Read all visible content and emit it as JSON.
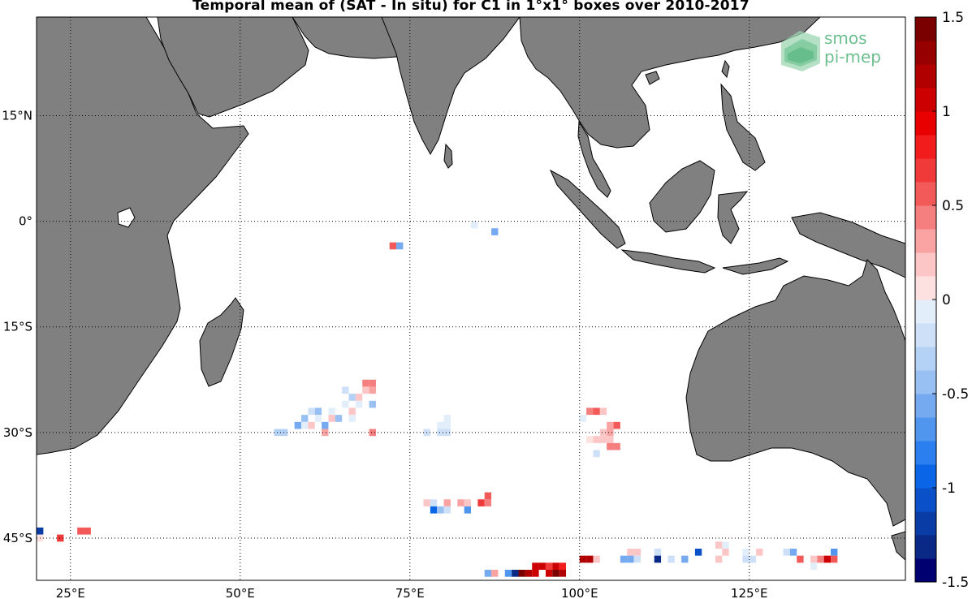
{
  "title": "Temporal mean of (SAT - In situ) for C1 in 1°x1° boxes over 2010-2017",
  "logo": {
    "line1": "smos",
    "line2": "pi-mep",
    "color": "#6dbf8f"
  },
  "map": {
    "lon_range": [
      20,
      148
    ],
    "lat_range": [
      -51,
      29
    ],
    "lon_ticks": [
      {
        "value": 25,
        "label": "25°E"
      },
      {
        "value": 50,
        "label": "50°E"
      },
      {
        "value": 75,
        "label": "75°E"
      },
      {
        "value": 100,
        "label": "100°E"
      },
      {
        "value": 125,
        "label": "125°E"
      }
    ],
    "lat_ticks": [
      {
        "value": 15,
        "label": "15°N"
      },
      {
        "value": 0,
        "label": "0°"
      },
      {
        "value": -15,
        "label": "15°S"
      },
      {
        "value": -30,
        "label": "30°S"
      },
      {
        "value": -45,
        "label": "45°S"
      }
    ],
    "land_color": "#808080",
    "ocean_color": "#ffffff",
    "grid": "dotted"
  },
  "colorbar": {
    "range": [
      -1.5,
      1.5
    ],
    "ticks": [
      {
        "value": 1.5,
        "label": "1.5"
      },
      {
        "value": 1,
        "label": "1"
      },
      {
        "value": 0.5,
        "label": "0.5"
      },
      {
        "value": 0,
        "label": "0"
      },
      {
        "value": -0.5,
        "label": "-0.5"
      },
      {
        "value": -1,
        "label": "-1"
      },
      {
        "value": -1.5,
        "label": "-1.5"
      }
    ],
    "steps": 24,
    "high_color": "#7a0000",
    "low_color": "#000070"
  },
  "chart_data": {
    "type": "heatmap",
    "title": "Temporal mean of (SAT - In situ) for C1 in 1°x1° boxes over 2010-2017",
    "xlabel": "",
    "ylabel": "",
    "xlim": [
      20,
      148
    ],
    "ylim": [
      -51,
      29
    ],
    "cells": [
      {
        "lon": 84,
        "lat": -0.5,
        "v": -0.1
      },
      {
        "lon": 87,
        "lat": -1.5,
        "v": -0.5
      },
      {
        "lon": 72,
        "lat": -3.5,
        "v": 0.6
      },
      {
        "lon": 73,
        "lat": -3.5,
        "v": -0.6
      },
      {
        "lon": 68,
        "lat": -23,
        "v": 0.4
      },
      {
        "lon": 69,
        "lat": -23,
        "v": 0.4
      },
      {
        "lon": 68,
        "lat": -24,
        "v": 0.2
      },
      {
        "lon": 69,
        "lat": -24,
        "v": 0.3
      },
      {
        "lon": 65,
        "lat": -24,
        "v": -0.15
      },
      {
        "lon": 66,
        "lat": -25,
        "v": -0.3
      },
      {
        "lon": 67,
        "lat": -25,
        "v": 0.15
      },
      {
        "lon": 65,
        "lat": -26,
        "v": -0.1
      },
      {
        "lon": 67,
        "lat": -26,
        "v": -0.1
      },
      {
        "lon": 69,
        "lat": -26,
        "v": -0.4
      },
      {
        "lon": 66,
        "lat": -27,
        "v": 0.2
      },
      {
        "lon": 60,
        "lat": -27,
        "v": -0.2
      },
      {
        "lon": 61,
        "lat": -27,
        "v": -0.4
      },
      {
        "lon": 63,
        "lat": -27,
        "v": -0.1
      },
      {
        "lon": 66,
        "lat": -28,
        "v": -0.1
      },
      {
        "lon": 59,
        "lat": -28,
        "v": -0.4
      },
      {
        "lon": 61,
        "lat": -28,
        "v": -0.1
      },
      {
        "lon": 63,
        "lat": -28,
        "v": 0.2
      },
      {
        "lon": 64,
        "lat": -28,
        "v": -0.4
      },
      {
        "lon": 58,
        "lat": -29,
        "v": -0.5
      },
      {
        "lon": 59,
        "lat": -29,
        "v": -0.1
      },
      {
        "lon": 60,
        "lat": -29,
        "v": 0.2
      },
      {
        "lon": 62,
        "lat": -29,
        "v": -0.5
      },
      {
        "lon": 62,
        "lat": -30,
        "v": 0.3
      },
      {
        "lon": 55,
        "lat": -30,
        "v": -0.3
      },
      {
        "lon": 56,
        "lat": -30,
        "v": -0.3
      },
      {
        "lon": 69,
        "lat": -30,
        "v": 0.4
      },
      {
        "lon": 80,
        "lat": -28,
        "v": -0.1
      },
      {
        "lon": 79,
        "lat": -29,
        "v": -0.1
      },
      {
        "lon": 80,
        "lat": -29,
        "v": -0.1
      },
      {
        "lon": 77,
        "lat": -30,
        "v": -0.2
      },
      {
        "lon": 79,
        "lat": -30,
        "v": -0.2
      },
      {
        "lon": 80,
        "lat": -30,
        "v": -0.2
      },
      {
        "lon": 101,
        "lat": -27,
        "v": 0.4
      },
      {
        "lon": 102,
        "lat": -27,
        "v": 0.6
      },
      {
        "lon": 103,
        "lat": -27,
        "v": 0.2
      },
      {
        "lon": 100,
        "lat": -28,
        "v": -0.1
      },
      {
        "lon": 104,
        "lat": -29,
        "v": 0.3
      },
      {
        "lon": 105,
        "lat": -29,
        "v": 0.5
      },
      {
        "lon": 103,
        "lat": -30,
        "v": 0.2
      },
      {
        "lon": 104,
        "lat": -30,
        "v": 0.3
      },
      {
        "lon": 102,
        "lat": -31,
        "v": 0.2
      },
      {
        "lon": 103,
        "lat": -31,
        "v": 0.2
      },
      {
        "lon": 104,
        "lat": -31,
        "v": 0.2
      },
      {
        "lon": 101,
        "lat": -31,
        "v": 0.1
      },
      {
        "lon": 104,
        "lat": -32,
        "v": 0.4
      },
      {
        "lon": 105,
        "lat": -32,
        "v": 0.4
      },
      {
        "lon": 102,
        "lat": -33,
        "v": -0.15
      },
      {
        "lon": 77,
        "lat": -40,
        "v": 0.2
      },
      {
        "lon": 78,
        "lat": -40,
        "v": -0.2
      },
      {
        "lon": 80,
        "lat": -40,
        "v": 0.3
      },
      {
        "lon": 82,
        "lat": -40,
        "v": 0.3
      },
      {
        "lon": 83,
        "lat": -40,
        "v": 0.2
      },
      {
        "lon": 85,
        "lat": -40,
        "v": 0.7
      },
      {
        "lon": 86,
        "lat": -40,
        "v": 0.4
      },
      {
        "lon": 86,
        "lat": -39,
        "v": 0.5
      },
      {
        "lon": 78,
        "lat": -41,
        "v": -0.9
      },
      {
        "lon": 79,
        "lat": -41,
        "v": -0.4
      },
      {
        "lon": 80,
        "lat": -41,
        "v": -0.2
      },
      {
        "lon": 83,
        "lat": -41,
        "v": -0.7
      },
      {
        "lon": 20,
        "lat": -44,
        "v": -1.2
      },
      {
        "lon": 26,
        "lat": -44,
        "v": 0.5
      },
      {
        "lon": 27,
        "lat": -44,
        "v": 0.5
      },
      {
        "lon": 20,
        "lat": -45,
        "v": 0.1
      },
      {
        "lon": 23,
        "lat": -45,
        "v": 0.7
      },
      {
        "lon": 107,
        "lat": -47,
        "v": 0.2
      },
      {
        "lon": 108,
        "lat": -47,
        "v": 0.2
      },
      {
        "lon": 111,
        "lat": -47,
        "v": -0.2
      },
      {
        "lon": 117,
        "lat": -47,
        "v": -1.0
      },
      {
        "lon": 120,
        "lat": -46,
        "v": 0.2
      },
      {
        "lon": 121,
        "lat": -46,
        "v": -0.1
      },
      {
        "lon": 121,
        "lat": -47,
        "v": 0.2
      },
      {
        "lon": 124,
        "lat": -47,
        "v": -0.1
      },
      {
        "lon": 126,
        "lat": -47,
        "v": 0.2
      },
      {
        "lon": 130,
        "lat": -47,
        "v": -0.2
      },
      {
        "lon": 131,
        "lat": -47,
        "v": -0.5
      },
      {
        "lon": 137,
        "lat": -47,
        "v": -0.7
      },
      {
        "lon": 100,
        "lat": -48,
        "v": 1.2
      },
      {
        "lon": 101,
        "lat": -48,
        "v": 1.2
      },
      {
        "lon": 102,
        "lat": -48,
        "v": 0.2
      },
      {
        "lon": 106,
        "lat": -48,
        "v": -0.6
      },
      {
        "lon": 107,
        "lat": -48,
        "v": -0.6
      },
      {
        "lon": 108,
        "lat": -48,
        "v": -0.2
      },
      {
        "lon": 111,
        "lat": -48,
        "v": -1.3
      },
      {
        "lon": 113,
        "lat": -48,
        "v": -0.2
      },
      {
        "lon": 115,
        "lat": -48,
        "v": -0.6
      },
      {
        "lon": 120,
        "lat": -48,
        "v": 0.2
      },
      {
        "lon": 124,
        "lat": -48,
        "v": -0.2
      },
      {
        "lon": 125,
        "lat": -48,
        "v": -0.2
      },
      {
        "lon": 132,
        "lat": -48,
        "v": 0.6
      },
      {
        "lon": 134,
        "lat": -48,
        "v": 0.2
      },
      {
        "lon": 135,
        "lat": -48,
        "v": 0.4
      },
      {
        "lon": 136,
        "lat": -48,
        "v": 1.1
      },
      {
        "lon": 137,
        "lat": -48,
        "v": 0.5
      },
      {
        "lon": 134,
        "lat": -49,
        "v": -0.1
      },
      {
        "lon": 93,
        "lat": -49,
        "v": 1.1
      },
      {
        "lon": 94,
        "lat": -49,
        "v": 1.1
      },
      {
        "lon": 95,
        "lat": -49,
        "v": 0.7
      },
      {
        "lon": 96,
        "lat": -49,
        "v": 1.1
      },
      {
        "lon": 97,
        "lat": -49,
        "v": 0.8
      },
      {
        "lon": 86,
        "lat": -50,
        "v": -0.5
      },
      {
        "lon": 87,
        "lat": -50,
        "v": 0.3
      },
      {
        "lon": 89,
        "lat": -50,
        "v": -0.7
      },
      {
        "lon": 90,
        "lat": -50,
        "v": -1.3
      },
      {
        "lon": 91,
        "lat": -50,
        "v": 1.4
      },
      {
        "lon": 92,
        "lat": -50,
        "v": 1.2
      },
      {
        "lon": 93,
        "lat": -50,
        "v": 1.1
      },
      {
        "lon": 95,
        "lat": -50,
        "v": 1.1
      },
      {
        "lon": 96,
        "lat": -50,
        "v": 1.4
      },
      {
        "lon": 97,
        "lat": -50,
        "v": 1.2
      }
    ]
  }
}
